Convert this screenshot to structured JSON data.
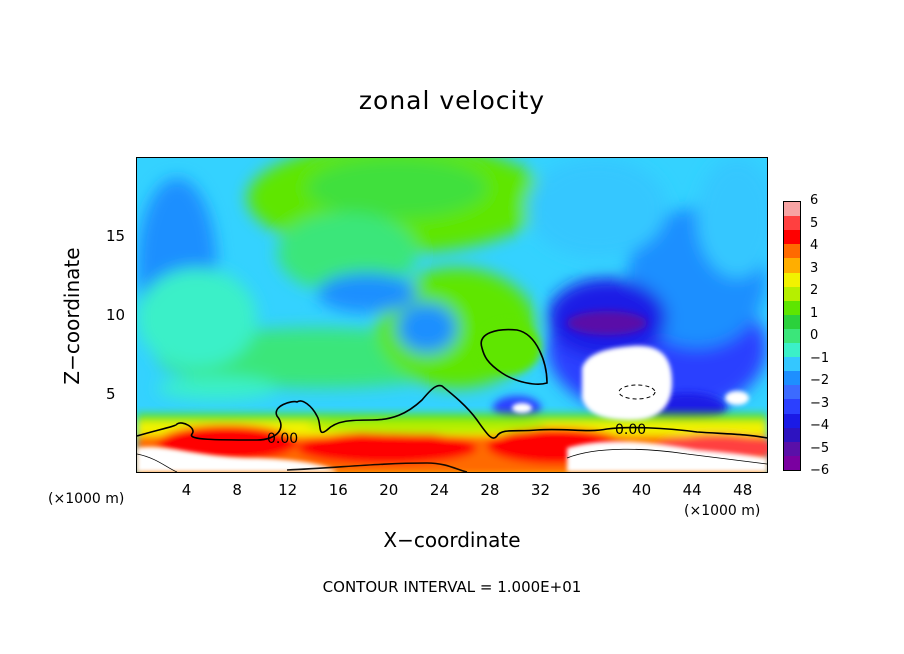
{
  "chart_data": {
    "type": "heatmap",
    "title": "zonal velocity",
    "xlabel": "X−coordinate",
    "ylabel": "Z−coordinate",
    "x_unit": "(×1000 m)",
    "y_unit": "(×1000 m)",
    "xlim": [
      0,
      50
    ],
    "ylim": [
      0,
      20
    ],
    "x_ticks": [
      4,
      8,
      12,
      16,
      20,
      24,
      28,
      32,
      36,
      40,
      44,
      48
    ],
    "y_ticks": [
      5,
      10,
      15
    ],
    "contour_label": "0.00",
    "footer": "CONTOUR INTERVAL = 1.000E+01",
    "colorbar": {
      "min": -6,
      "max": 6,
      "labels": [
        "6",
        "5",
        "4",
        "3",
        "2",
        "1",
        "0",
        "−1",
        "−2",
        "−3",
        "−4",
        "−5",
        "−6"
      ],
      "colors": [
        "#f7a3a3",
        "#ff4040",
        "#ff0000",
        "#ff6a00",
        "#ffae00",
        "#f2f200",
        "#b6ef00",
        "#5ee600",
        "#2bd13c",
        "#3be67a",
        "#3bf0c8",
        "#34c7ff",
        "#1e8fff",
        "#3c6bff",
        "#2b40ff",
        "#1a1ae6",
        "#2d13c0",
        "#5a0fa8",
        "#7a00a0"
      ]
    },
    "features": [
      {
        "x": 30,
        "z": 7.5,
        "u": 1.5
      },
      {
        "x": 38.5,
        "z": 5.5,
        "u": -7
      },
      {
        "x": 47,
        "z": 4.8,
        "u": -7
      },
      {
        "x": 20,
        "z": 1.5,
        "u": 4
      },
      {
        "x": 32,
        "z": 1.0,
        "u": 4.5
      },
      {
        "x": 20,
        "z": 17,
        "u": 0.5
      },
      {
        "x": 35,
        "z": 10,
        "u": -4.5
      },
      {
        "x": 17,
        "z": 11.5,
        "u": -2.8
      }
    ]
  }
}
